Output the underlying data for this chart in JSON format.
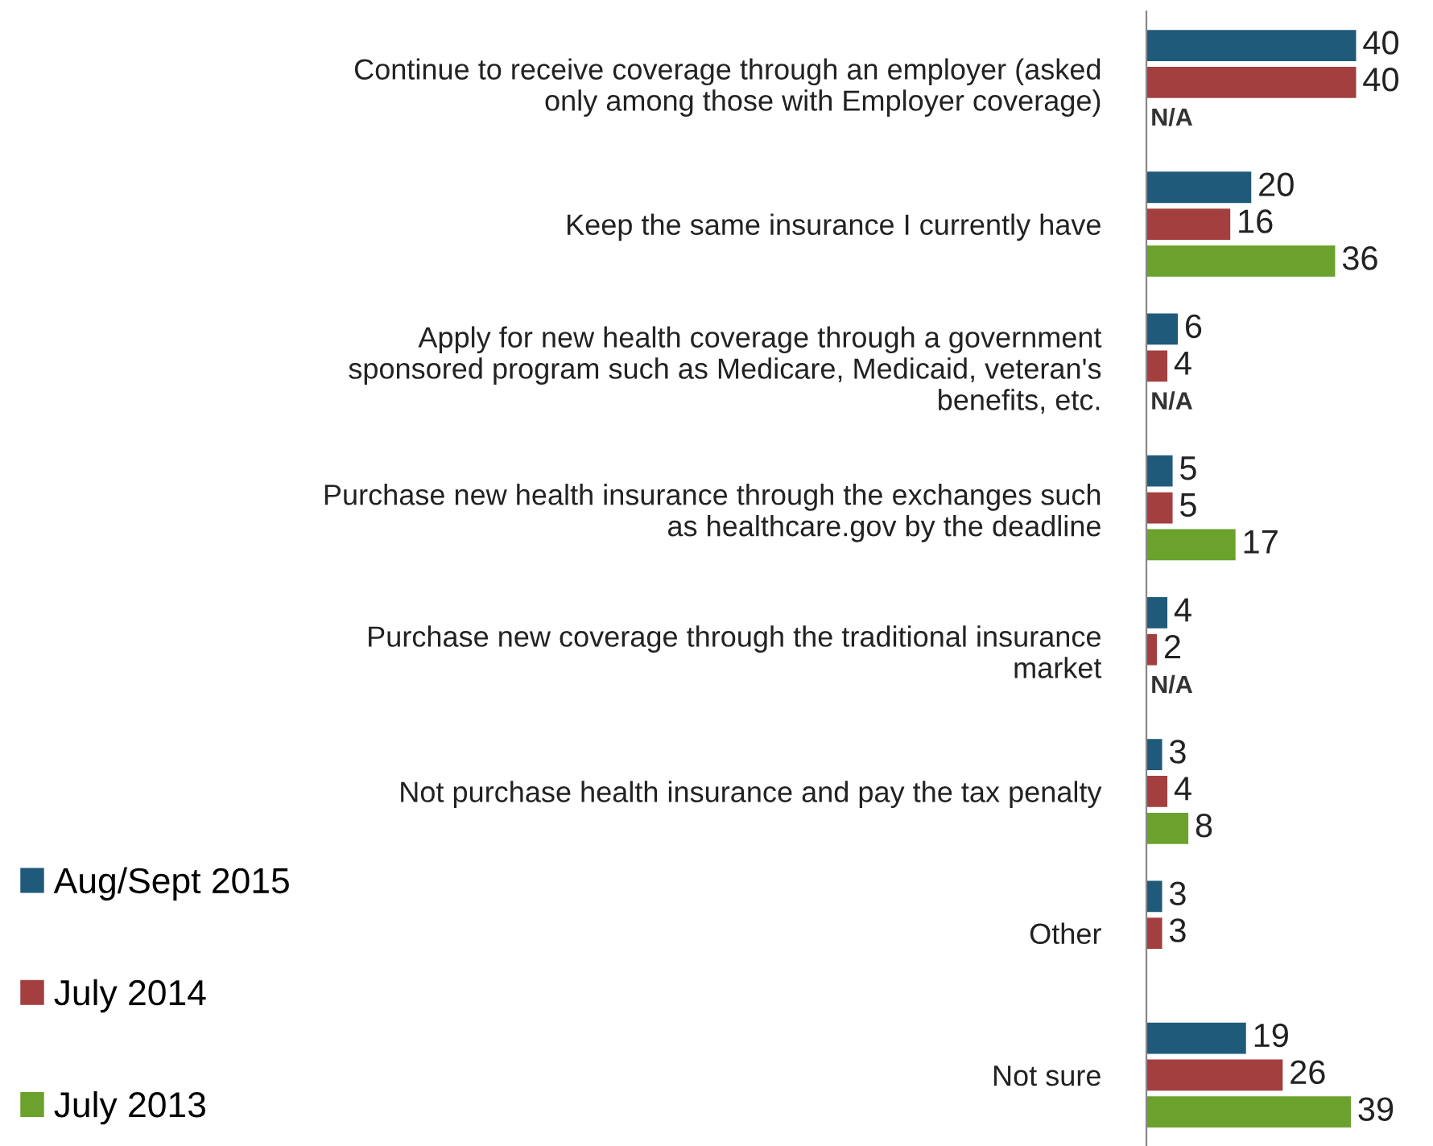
{
  "chart_data": {
    "type": "bar",
    "orientation": "horizontal",
    "categories": [
      "Continue to receive coverage through an employer (asked\nonly among those with Employer coverage)",
      "Keep the same insurance I currently have",
      "Apply for new health coverage through a government\nsponsored program such as Medicare, Medicaid, veteran's\nbenefits, etc.",
      "Purchase new health insurance through the exchanges such\nas healthcare.gov by the deadline",
      "Purchase new coverage through the traditional insurance\nmarket",
      "Not purchase health insurance and pay the tax penalty",
      "Other",
      "Not sure"
    ],
    "series": [
      {
        "name": "Aug/Sept 2015",
        "color": "#1f5a7a",
        "values": [
          40,
          20,
          6,
          5,
          4,
          3,
          3,
          19
        ],
        "value_labels": [
          "40",
          "20",
          "6",
          "5",
          "4",
          "3",
          "3",
          "19"
        ]
      },
      {
        "name": "July 2014",
        "color": "#a33f3f",
        "values": [
          40,
          16,
          4,
          5,
          2,
          4,
          3,
          26
        ],
        "value_labels": [
          "40",
          "16",
          "4",
          "5",
          "2",
          "4",
          "3",
          "26"
        ]
      },
      {
        "name": "July 2013",
        "color": "#6aa22d",
        "values": [
          null,
          36,
          null,
          17,
          null,
          8,
          null,
          39
        ],
        "value_labels": [
          "N/A",
          "36",
          "N/A",
          "17",
          "N/A",
          "8",
          null,
          "39"
        ]
      }
    ],
    "legend": "bottom left",
    "grid": false
  }
}
